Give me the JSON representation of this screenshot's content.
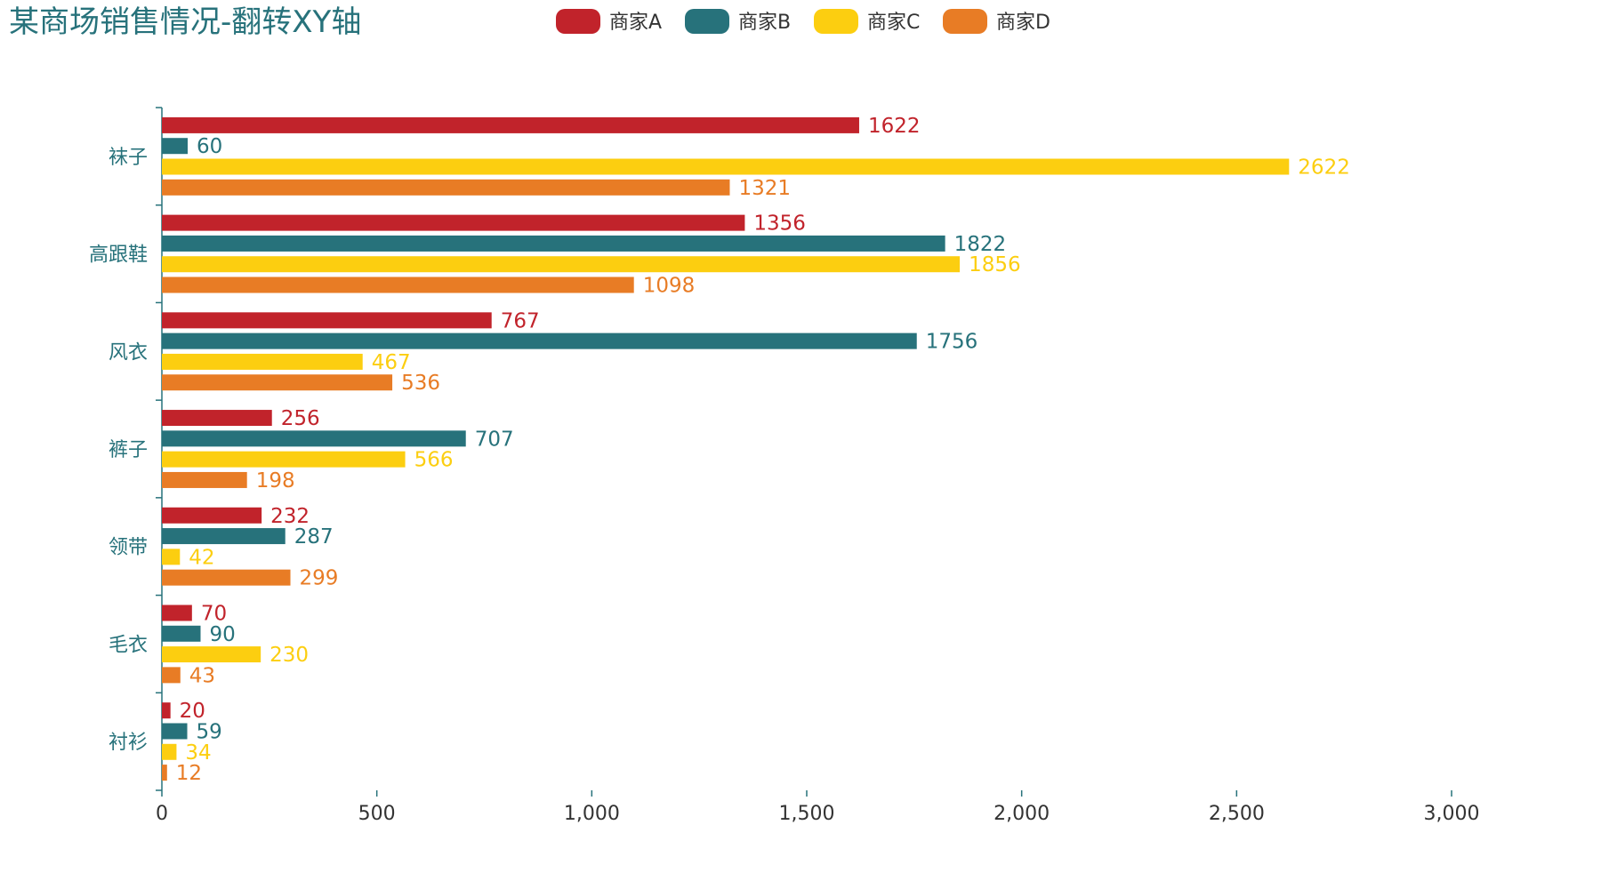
{
  "chart_data": {
    "type": "bar",
    "orientation": "horizontal",
    "title": "某商场销售情况-翻转XY轴",
    "categories": [
      "衬衫",
      "毛衣",
      "领带",
      "裤子",
      "风衣",
      "高跟鞋",
      "袜子"
    ],
    "series": [
      {
        "name": "商家A",
        "color": "#c1232b",
        "values": [
          20,
          70,
          232,
          256,
          767,
          1356,
          1622
        ]
      },
      {
        "name": "商家B",
        "color": "#27727b",
        "values": [
          59,
          90,
          287,
          707,
          1756,
          1822,
          60
        ]
      },
      {
        "name": "商家C",
        "color": "#fcce10",
        "values": [
          34,
          230,
          42,
          566,
          467,
          1856,
          2622
        ]
      },
      {
        "name": "商家D",
        "color": "#e87c25",
        "values": [
          12,
          43,
          299,
          198,
          536,
          1098,
          1321
        ]
      }
    ],
    "xlim": [
      0,
      3000
    ],
    "xticks": [
      0,
      500,
      1000,
      1500,
      2000,
      2500,
      3000
    ],
    "xtick_labels": [
      "0",
      "500",
      "1,000",
      "1,500",
      "2,000",
      "2,500",
      "3,000"
    ],
    "grid": false,
    "legend_position": "top-center",
    "data_labels": true
  },
  "colors": {
    "title": "#27727b",
    "axis": "#27727b",
    "category_label": "#27727b",
    "tick_label": "#333333",
    "legend_text": "#333333"
  }
}
